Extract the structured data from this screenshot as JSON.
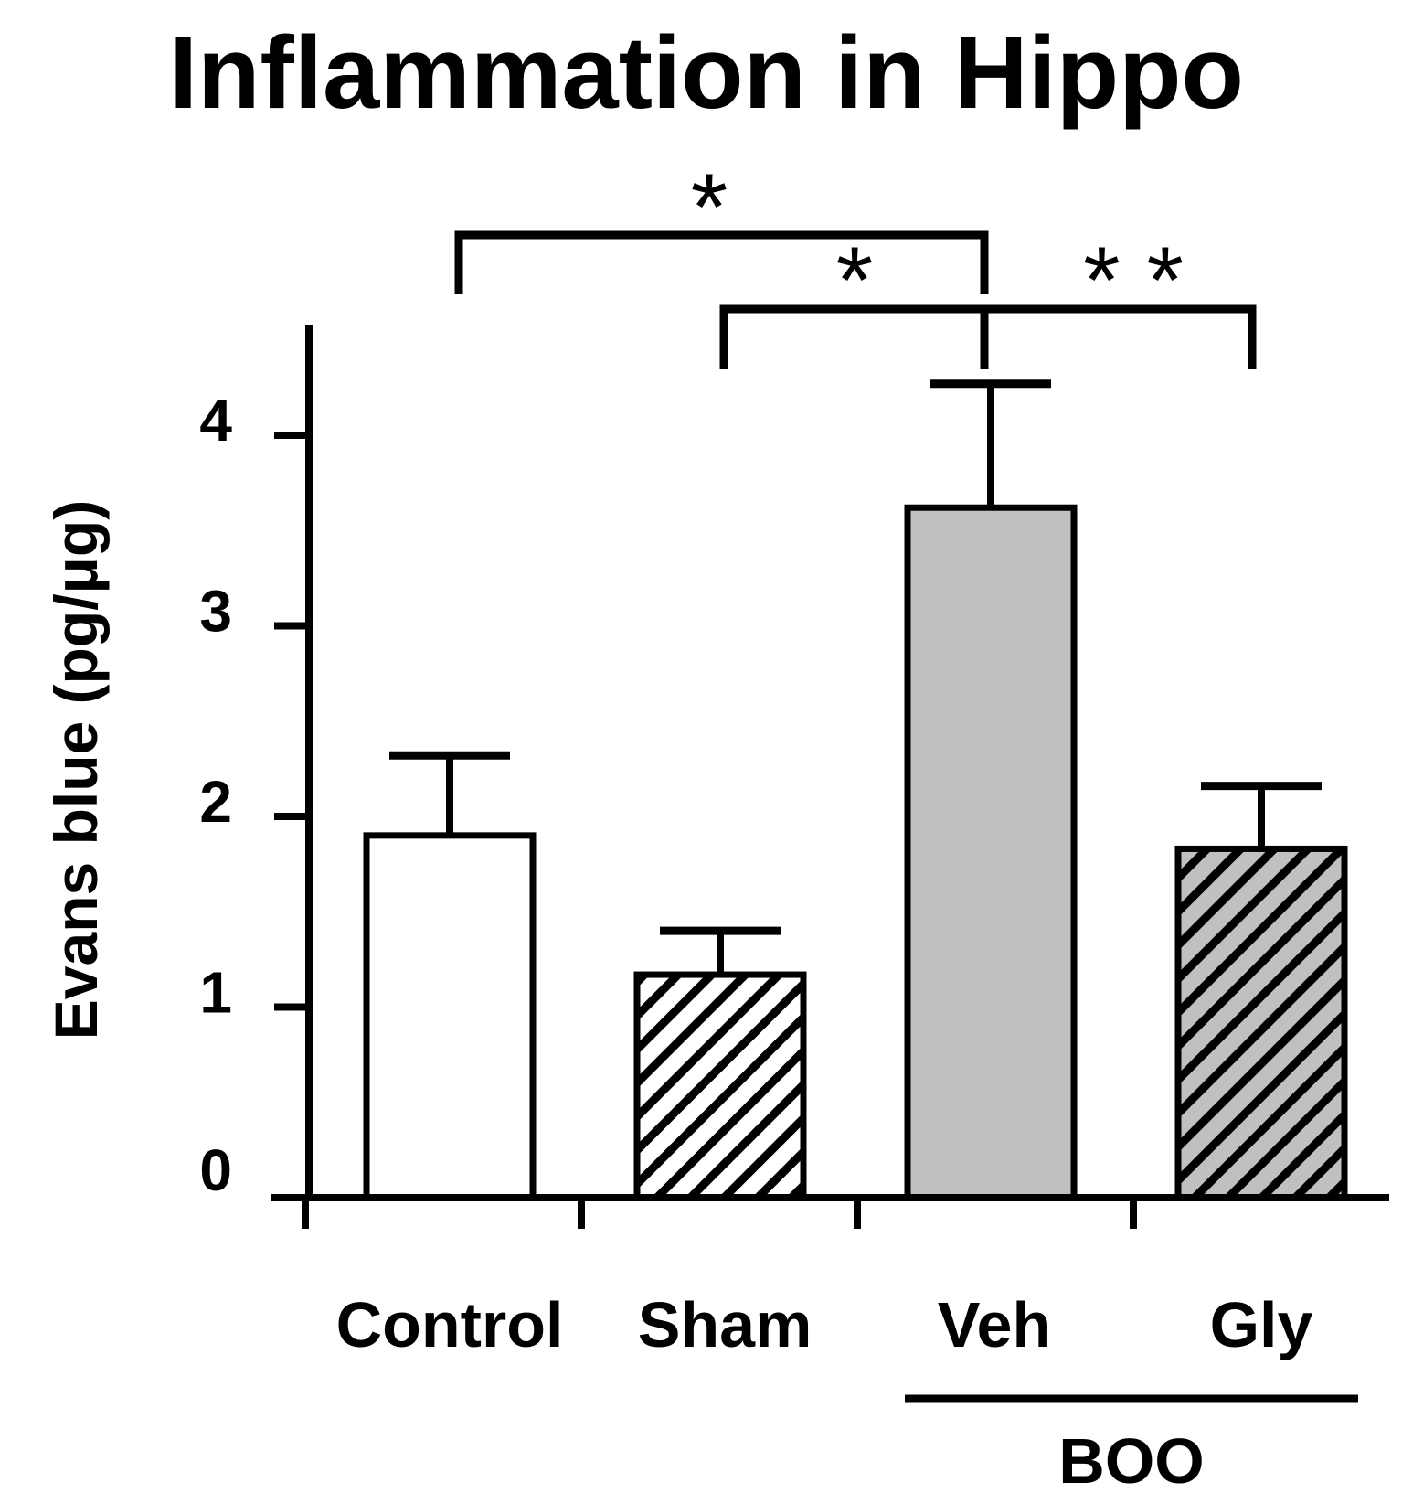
{
  "chart_data": {
    "type": "bar",
    "title": "Inflammation in Hippo",
    "ylabel": "Evans blue (pg/μg)",
    "xlabel": "",
    "ylim": [
      0,
      4.6
    ],
    "yticks": [
      0,
      1,
      2,
      3,
      4
    ],
    "categories": [
      "Control",
      "Sham",
      "Veh",
      "Gly"
    ],
    "values": [
      1.9,
      1.17,
      3.62,
      1.83
    ],
    "error": [
      0.42,
      0.23,
      0.65,
      0.33
    ],
    "fills": [
      "white",
      "hatch-white",
      "gray",
      "hatch-gray"
    ],
    "group_labels": [
      {
        "label": "BOO",
        "from": 2,
        "to": 3
      }
    ],
    "significance": [
      {
        "from": 0,
        "to": 2,
        "label": "*"
      },
      {
        "from": 1,
        "to": 2,
        "label": "*"
      },
      {
        "from": 2,
        "to": 3,
        "label": "* *"
      }
    ],
    "grid": false
  },
  "colors": {
    "bar_gray": "#c0c0c0",
    "outline": "#000000",
    "background": "#ffffff"
  }
}
